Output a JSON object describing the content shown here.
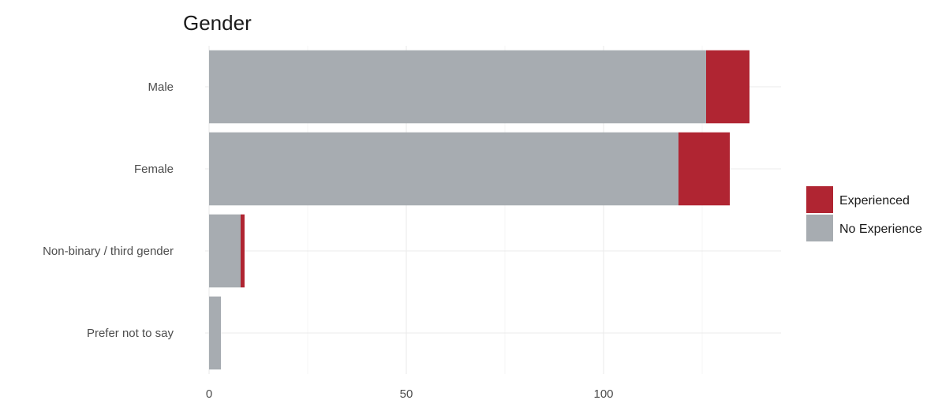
{
  "chart_data": {
    "type": "bar",
    "orientation": "horizontal",
    "stacked": true,
    "title": "Gender",
    "xlabel": "",
    "ylabel": "",
    "categories": [
      "Male",
      "Female",
      "Non-binary / third gender",
      "Prefer not to say"
    ],
    "series": [
      {
        "name": "No Experience",
        "color": "#a7acb1",
        "values": [
          126,
          119,
          8,
          3
        ]
      },
      {
        "name": "Experienced",
        "color": "#b02532",
        "values": [
          11,
          13,
          1,
          0
        ]
      }
    ],
    "xlim": [
      0,
      145
    ],
    "x_ticks": [
      0,
      50,
      100
    ],
    "grid": true,
    "legend_placement": "right"
  }
}
